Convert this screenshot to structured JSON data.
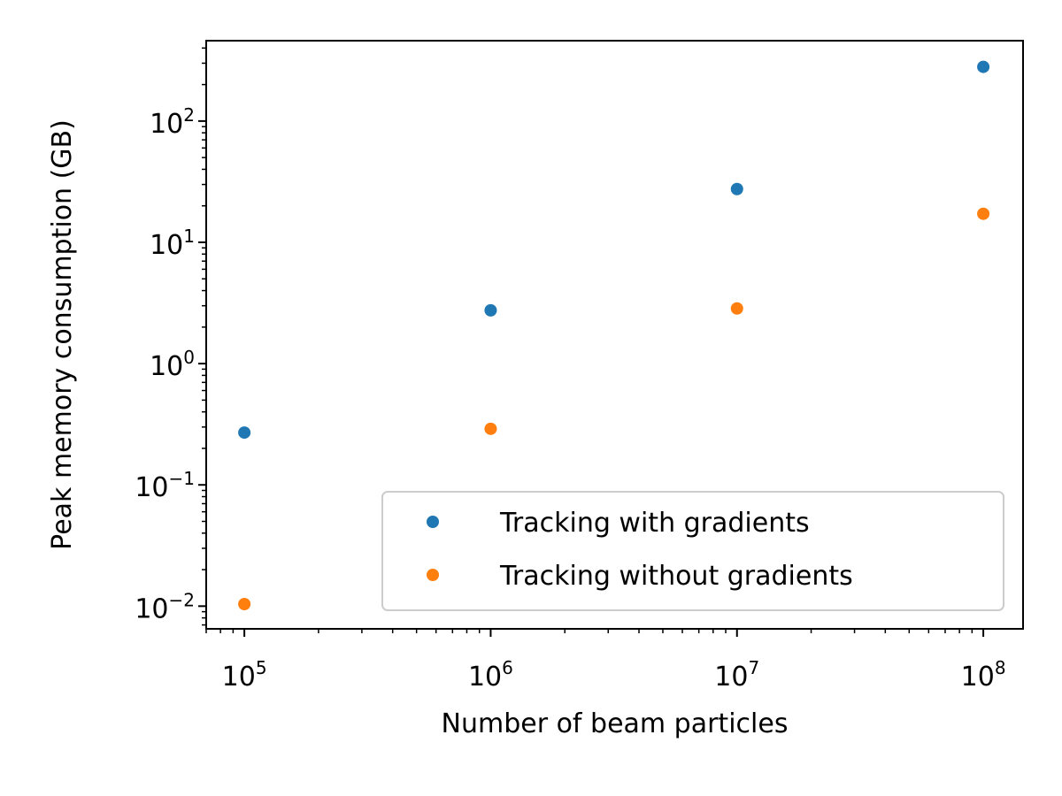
{
  "chart_data": {
    "type": "scatter",
    "title": "",
    "xlabel": "Number of beam particles",
    "ylabel": "Peak memory consumption (GB)",
    "xscale": "log",
    "yscale": "log",
    "xlim": [
      70000,
      145000000
    ],
    "ylim": [
      0.0065,
      460
    ],
    "grid": false,
    "legend_position": "lower-right",
    "x_ticks": [
      {
        "value": 100000,
        "base": "10",
        "exp": "5"
      },
      {
        "value": 1000000,
        "base": "10",
        "exp": "6"
      },
      {
        "value": 10000000,
        "base": "10",
        "exp": "7"
      },
      {
        "value": 100000000,
        "base": "10",
        "exp": "8"
      }
    ],
    "y_ticks": [
      {
        "value": 0.01,
        "base": "10",
        "exp": "−2"
      },
      {
        "value": 0.1,
        "base": "10",
        "exp": "−1"
      },
      {
        "value": 1,
        "base": "10",
        "exp": "0"
      },
      {
        "value": 10,
        "base": "10",
        "exp": "1"
      },
      {
        "value": 100,
        "base": "10",
        "exp": "2"
      }
    ],
    "x": [
      100000,
      1000000,
      10000000,
      100000000
    ],
    "series": [
      {
        "name": "Tracking with gradients",
        "color": "#1f77b4",
        "values": [
          0.27,
          2.75,
          27.5,
          280
        ]
      },
      {
        "name": "Tracking without gradients",
        "color": "#ff7f0e",
        "values": [
          0.0104,
          0.29,
          2.85,
          17.2
        ]
      }
    ]
  }
}
